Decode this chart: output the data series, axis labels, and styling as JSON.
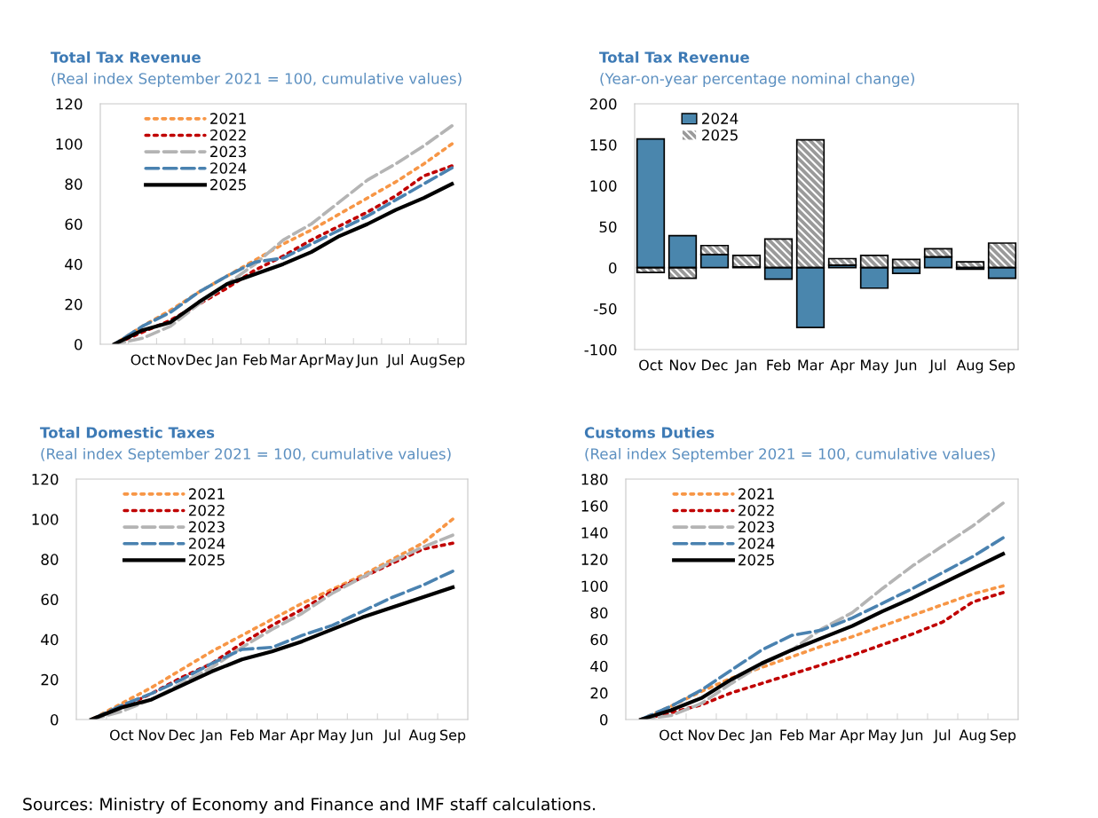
{
  "chart_data": [
    {
      "type": "line",
      "title": "Total Tax Revenue",
      "subtitle": "(Real index September 2021 = 100, cumulative values)",
      "categories": [
        null,
        "Oct",
        "Nov",
        "Dec",
        "Jan",
        "Feb",
        "Mar",
        "Apr",
        "May",
        "Jun",
        "Jul",
        "Aug",
        "Sep"
      ],
      "ylim": [
        0,
        120
      ],
      "yticks": [
        0,
        20,
        40,
        60,
        80,
        100,
        120
      ],
      "grid": false,
      "legend": "top left",
      "series": [
        {
          "name": "2021",
          "color": "#f79646",
          "line_style": "dotted",
          "values": [
            0,
            9,
            17,
            26,
            34,
            42,
            50,
            57,
            65,
            73,
            81,
            90,
            100
          ]
        },
        {
          "name": "2022",
          "color": "#c00000",
          "line_style": "dotted",
          "values": [
            0,
            6,
            12,
            20,
            28,
            37,
            44,
            52,
            59,
            66,
            74,
            84,
            89
          ]
        },
        {
          "name": "2023",
          "color": "#b4b4b4",
          "line_style": "dashed",
          "values": [
            0,
            3,
            9,
            20,
            30,
            40,
            52,
            60,
            71,
            82,
            90,
            99,
            109
          ]
        },
        {
          "name": "2024",
          "color": "#4a82b0",
          "line_style": "dashed",
          "values": [
            0,
            9,
            16,
            26,
            34,
            41,
            43,
            50,
            57,
            64,
            72,
            80,
            88
          ]
        },
        {
          "name": "2025",
          "color": "#000000",
          "line_style": "solid",
          "values": [
            0,
            7,
            11,
            21,
            30,
            35,
            40,
            46,
            54,
            60,
            67,
            73,
            80
          ]
        }
      ]
    },
    {
      "type": "bar",
      "stacked": true,
      "title": "Total Tax Revenue",
      "subtitle": "(Year-on-year percentage nominal change)",
      "categories": [
        "Oct",
        "Nov",
        "Dec",
        "Jan",
        "Feb",
        "Mar",
        "Apr",
        "May",
        "Jun",
        "Jul",
        "Aug",
        "Sep"
      ],
      "ylim": [
        -100,
        200
      ],
      "yticks": [
        -100,
        -50,
        0,
        50,
        100,
        150,
        200
      ],
      "grid": false,
      "legend": "top left",
      "series": [
        {
          "name": "2024",
          "color": "#4a86ad",
          "values": [
            157,
            39,
            16,
            1,
            -14,
            -73,
            3,
            -25,
            -7,
            13,
            -2,
            -13
          ]
        },
        {
          "name": "2025",
          "color": "#9a9a9a",
          "values": [
            -6,
            -13,
            11,
            14,
            35,
            156,
            8,
            15,
            10,
            10,
            7,
            30
          ]
        }
      ]
    },
    {
      "type": "line",
      "title": "Total Domestic Taxes",
      "subtitle": "(Real index September 2021 = 100, cumulative values)",
      "categories": [
        null,
        "Oct",
        "Nov",
        "Dec",
        "Jan",
        "Feb",
        "Mar",
        "Apr",
        "May",
        "Jun",
        "Jul",
        "Aug",
        "Sep"
      ],
      "ylim": [
        0,
        120
      ],
      "yticks": [
        0,
        20,
        40,
        60,
        80,
        100,
        120
      ],
      "grid": false,
      "legend": "top left",
      "series": [
        {
          "name": "2021",
          "color": "#f79646",
          "line_style": "dotted",
          "values": [
            0,
            8,
            16,
            25,
            34,
            42,
            50,
            58,
            65,
            72,
            80,
            88,
            100
          ]
        },
        {
          "name": "2022",
          "color": "#c00000",
          "line_style": "dotted",
          "values": [
            0,
            6,
            13,
            21,
            28,
            38,
            47,
            55,
            64,
            71,
            78,
            85,
            88
          ]
        },
        {
          "name": "2023",
          "color": "#b4b4b4",
          "line_style": "dashed",
          "values": [
            0,
            4,
            10,
            18,
            26,
            36,
            45,
            53,
            63,
            71,
            79,
            86,
            92
          ]
        },
        {
          "name": "2024",
          "color": "#4a82b0",
          "line_style": "dashed",
          "values": [
            0,
            7,
            13,
            20,
            28,
            35,
            36,
            42,
            47,
            54,
            61,
            67,
            74
          ]
        },
        {
          "name": "2025",
          "color": "#000000",
          "line_style": "solid",
          "values": [
            0,
            6,
            10,
            17,
            24,
            30,
            34,
            39,
            45,
            51,
            56,
            61,
            66
          ]
        }
      ]
    },
    {
      "type": "line",
      "title": "Customs Duties",
      "subtitle": "(Real index September 2021 = 100, cumulative values)",
      "categories": [
        null,
        "Oct",
        "Nov",
        "Dec",
        "Jan",
        "Feb",
        "Mar",
        "Apr",
        "May",
        "Jun",
        "Jul",
        "Aug",
        "Sep"
      ],
      "ylim": [
        0,
        180
      ],
      "yticks": [
        0,
        20,
        40,
        60,
        80,
        100,
        120,
        140,
        160,
        180
      ],
      "grid": false,
      "legend": "top left",
      "annotations": [
        "Sources: Ministry of Economy and Finance and IMF staff calculations."
      ],
      "series": [
        {
          "name": "2021",
          "color": "#f79646",
          "line_style": "dotted",
          "values": [
            0,
            10,
            21,
            31,
            39,
            47,
            55,
            62,
            70,
            78,
            86,
            94,
            100
          ]
        },
        {
          "name": "2022",
          "color": "#c00000",
          "line_style": "dotted",
          "values": [
            0,
            5,
            11,
            20,
            27,
            34,
            41,
            48,
            56,
            64,
            73,
            88,
            95
          ]
        },
        {
          "name": "2023",
          "color": "#b4b4b4",
          "line_style": "dashed",
          "values": [
            0,
            3,
            12,
            27,
            41,
            52,
            68,
            80,
            98,
            115,
            130,
            145,
            162
          ]
        },
        {
          "name": "2024",
          "color": "#4a82b0",
          "line_style": "dashed",
          "values": [
            0,
            10,
            22,
            37,
            52,
            63,
            67,
            76,
            87,
            98,
            110,
            122,
            136
          ]
        },
        {
          "name": "2025",
          "color": "#000000",
          "line_style": "solid",
          "values": [
            0,
            7,
            16,
            30,
            42,
            52,
            61,
            70,
            81,
            91,
            102,
            113,
            124
          ]
        }
      ]
    }
  ]
}
